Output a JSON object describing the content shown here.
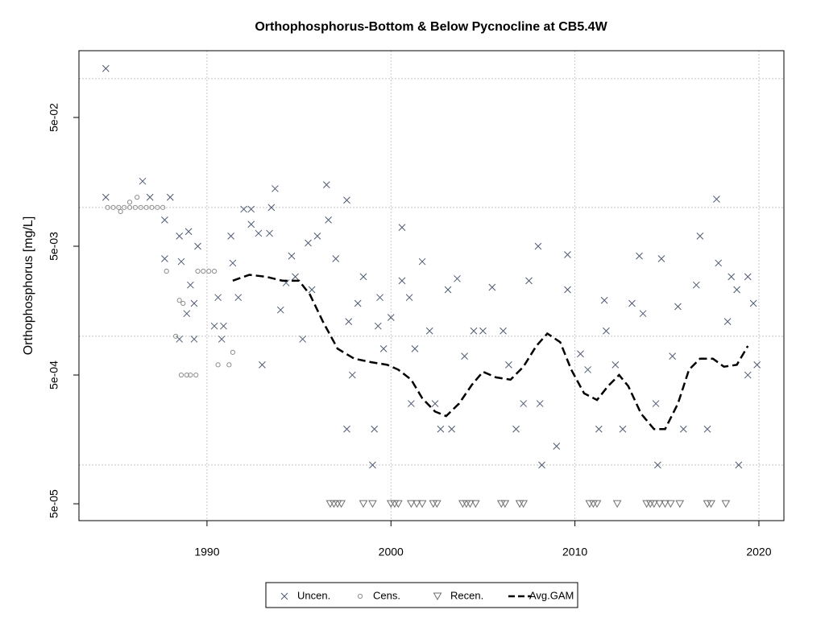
{
  "chart_data": {
    "type": "scatter",
    "title": "Orthophosphorus-Bottom & Below Pycnocline at CB5.4W",
    "y_label": "Orthophosphorus [mg/L]",
    "y_log": true,
    "grid": true,
    "legend_position": "bottom",
    "xlim": [
      1983.04,
      2021.36
    ],
    "xticks": [
      1990,
      2000,
      2010,
      2020
    ],
    "ylim": [
      3.7e-05,
      0.165
    ],
    "yticks": [
      {
        "value": 0.05,
        "label": "5e-02"
      },
      {
        "value": 0.005,
        "label": "5e-03"
      },
      {
        "value": 0.0005,
        "label": "5e-04"
      },
      {
        "value": 5e-05,
        "label": "5e-05"
      }
    ],
    "ygrid": [
      0.1,
      0.01,
      0.001,
      0.0001
    ],
    "series": [
      {
        "name": "Uncen.",
        "color": "#4d5a72",
        "marker": "x",
        "x": [
          1984.5,
          1984.5,
          1986.5,
          1986.9,
          1988.0,
          1987.7,
          1987.7,
          1988.5,
          1989.0,
          1988.6,
          1989.5,
          1989.1,
          1989.3,
          1988.9,
          1988.5,
          1989.3,
          1990.6,
          1990.4,
          1990.9,
          1990.8,
          1991.3,
          1991.4,
          1991.7,
          1992.0,
          1992.4,
          1992.4,
          1992.8,
          1993.4,
          1993.7,
          1993.5,
          1993.0,
          1994.0,
          1994.6,
          1995.2,
          1995.5,
          1996.0,
          1996.5,
          1996.6,
          1997.0,
          1997.6,
          1997.6,
          1997.7,
          1997.9,
          1998.2,
          1998.5,
          1999.0,
          1999.1,
          1999.3,
          1999.4,
          1999.6,
          2000.6,
          2000.6,
          2001.0,
          2001.1,
          2001.3,
          2001.7,
          2002.1,
          2002.4,
          2002.7,
          2003.1,
          2003.3,
          2003.6,
          2004.0,
          2004.5,
          2005.0,
          2005.5,
          2006.1,
          2006.4,
          2006.8,
          2007.2,
          2007.5,
          2008.0,
          2008.1,
          2008.2,
          2009.0,
          2009.6,
          2009.6,
          2010.3,
          2010.7,
          2011.3,
          2011.6,
          2011.7,
          2012.2,
          2012.6,
          2013.1,
          2013.5,
          2013.7,
          2014.4,
          2014.5,
          2014.7,
          2015.3,
          2015.6,
          2015.9,
          2016.6,
          2016.8,
          2017.2,
          2017.7,
          2017.8,
          2018.3,
          2018.5,
          2018.8,
          2018.9,
          2019.4,
          2019.4,
          2019.7,
          2019.9,
          1994.3,
          1994.8,
          1995.7,
          2000.0
        ],
        "values": [
          0.12,
          0.012,
          0.016,
          0.012,
          0.012,
          0.008,
          0.004,
          0.006,
          0.0065,
          0.0038,
          0.005,
          0.0025,
          0.0018,
          0.0015,
          0.00095,
          0.00095,
          0.002,
          0.0012,
          0.0012,
          0.00095,
          0.006,
          0.0037,
          0.002,
          0.0097,
          0.0097,
          0.0074,
          0.0063,
          0.0063,
          0.014,
          0.01,
          0.0006,
          0.0016,
          0.0042,
          0.00095,
          0.0053,
          0.006,
          0.015,
          0.008,
          0.004,
          0.0114,
          0.00019,
          0.0013,
          0.0005,
          0.0018,
          0.0029,
          0.0001,
          0.00019,
          0.0012,
          0.002,
          0.0008,
          0.007,
          0.0027,
          0.002,
          0.0003,
          0.0008,
          0.0038,
          0.0011,
          0.0003,
          0.00019,
          0.0023,
          0.00019,
          0.0028,
          0.0007,
          0.0011,
          0.0011,
          0.0024,
          0.0011,
          0.0006,
          0.00019,
          0.0003,
          0.0027,
          0.005,
          0.0003,
          0.0001,
          0.00014,
          0.0043,
          0.0023,
          0.00073,
          0.00055,
          0.00019,
          0.0019,
          0.0011,
          0.0006,
          0.00019,
          0.0018,
          0.0042,
          0.0015,
          0.0003,
          0.0001,
          0.004,
          0.0007,
          0.0017,
          0.00019,
          0.0025,
          0.006,
          0.00019,
          0.0116,
          0.0037,
          0.0013,
          0.0029,
          0.0023,
          0.0001,
          0.0029,
          0.0005,
          0.0018,
          0.0006,
          0.0026,
          0.0029,
          0.0023,
          0.0014
        ]
      },
      {
        "name": "Cens.",
        "color": "#8c8c8c",
        "marker": "circle",
        "x": [
          1984.6,
          1984.9,
          1985.2,
          1985.5,
          1985.8,
          1986.1,
          1986.4,
          1986.7,
          1987.0,
          1987.3,
          1987.6,
          1985.8,
          1986.2,
          1985.3,
          1987.8,
          1988.5,
          1988.7,
          1988.3,
          1988.6,
          1988.9,
          1989.1,
          1989.4,
          1989.5,
          1989.8,
          1990.1,
          1990.4,
          1990.6,
          1991.2,
          1991.4
        ],
        "values": [
          0.01,
          0.01,
          0.01,
          0.01,
          0.01,
          0.01,
          0.01,
          0.01,
          0.01,
          0.01,
          0.01,
          0.011,
          0.012,
          0.0093,
          0.0032,
          0.0019,
          0.0018,
          0.001,
          0.0005,
          0.0005,
          0.0005,
          0.0005,
          0.0032,
          0.0032,
          0.0032,
          0.0032,
          0.0006,
          0.0006,
          0.00075
        ]
      },
      {
        "name": "Recen.",
        "color": "#6e6e6e",
        "marker": "triangle-down",
        "x": [
          1996.7,
          1996.9,
          1997.1,
          1997.3,
          1998.5,
          1999.0,
          2000.0,
          2000.2,
          2000.4,
          2001.1,
          2001.4,
          2001.7,
          2002.3,
          2002.5,
          2003.9,
          2004.1,
          2004.3,
          2004.6,
          2006.0,
          2006.2,
          2007.0,
          2007.2,
          2010.8,
          2011.0,
          2011.2,
          2012.3,
          2013.9,
          2014.1,
          2014.3,
          2014.6,
          2014.9,
          2015.2,
          2015.7,
          2017.2,
          2017.4,
          2018.2
        ],
        "values": [
          5e-05,
          5e-05,
          5e-05,
          5e-05,
          5e-05,
          5e-05,
          5e-05,
          5e-05,
          5e-05,
          5e-05,
          5e-05,
          5e-05,
          5e-05,
          5e-05,
          5e-05,
          5e-05,
          5e-05,
          5e-05,
          5e-05,
          5e-05,
          5e-05,
          5e-05,
          5e-05,
          5e-05,
          5e-05,
          5e-05,
          5e-05,
          5e-05,
          5e-05,
          5e-05,
          5e-05,
          5e-05,
          5e-05,
          5e-05,
          5e-05,
          5e-05
        ]
      },
      {
        "name": "Avg.GAM",
        "color": "#000000",
        "marker": "dashed-line",
        "x": [
          1991.4,
          1992.3,
          1993.2,
          1994.1,
          1995.0,
          1995.6,
          1996.3,
          1997.1,
          1998.0,
          1998.9,
          1999.8,
          2000.4,
          2001.1,
          2001.7,
          2002.4,
          2003.0,
          2003.7,
          2004.4,
          2005.0,
          2005.7,
          2006.5,
          2007.2,
          2007.9,
          2008.5,
          2009.2,
          2009.8,
          2010.5,
          2011.2,
          2011.8,
          2012.4,
          2012.9,
          2013.6,
          2014.3,
          2014.9,
          2015.6,
          2016.2,
          2016.8,
          2017.5,
          2018.1,
          2018.8,
          2019.4
        ],
        "values": [
          0.0027,
          0.003,
          0.0029,
          0.0027,
          0.0027,
          0.0021,
          0.0013,
          0.0008,
          0.00067,
          0.00063,
          0.0006,
          0.00055,
          0.00046,
          0.00033,
          0.00026,
          0.00024,
          0.0003,
          0.00042,
          0.00053,
          0.00048,
          0.00046,
          0.00058,
          0.00084,
          0.00105,
          0.0009,
          0.00055,
          0.00036,
          0.00032,
          0.00041,
          0.0005,
          0.00041,
          0.00025,
          0.00019,
          0.00019,
          0.0003,
          0.00055,
          0.00067,
          0.00067,
          0.00058,
          0.0006,
          0.00084
        ]
      }
    ]
  }
}
